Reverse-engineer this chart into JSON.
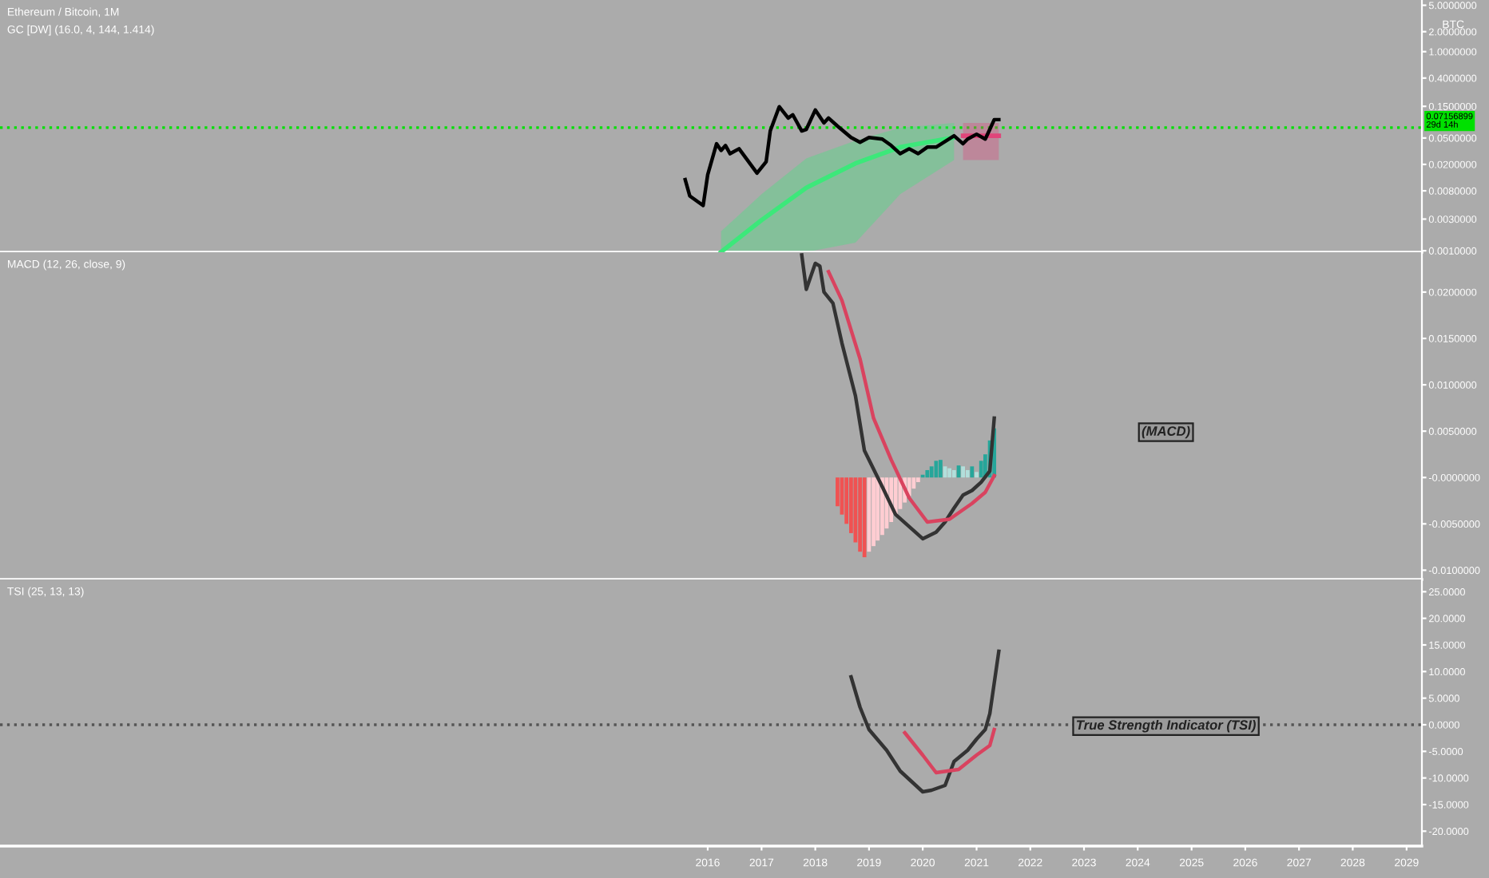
{
  "chart_data": [
    {
      "type": "line",
      "title": "Ethereum / Bitcoin, 1M",
      "subtitle": "GC [DW] (16.0, 4, 144, 1.414)",
      "ylabel": "BTC",
      "log": true,
      "grid": false,
      "tick_labels": "y",
      "xlim": [
        "2002-11",
        "2029-04-15"
      ],
      "ylim": [
        0.00095,
        6
      ],
      "yticks": [
        {
          "value": 5,
          "label": "5.0000000"
        },
        {
          "value": 2,
          "label": "2.0000000"
        },
        {
          "value": 1,
          "label": "1.0000000"
        },
        {
          "value": 0.4,
          "label": "0.4000000"
        },
        {
          "value": 0.15,
          "label": "0.1500000"
        },
        {
          "value": 0.05,
          "label": "0.0500000"
        },
        {
          "value": 0.02,
          "label": "0.0200000"
        },
        {
          "value": 0.008,
          "label": "0.0080000"
        },
        {
          "value": 0.003,
          "label": "0.0030000"
        },
        {
          "value": 0.001,
          "label": "0.0010000"
        }
      ],
      "ref_lines": [
        {
          "axis": "y",
          "value": 0.07156899,
          "label": "0.07156899\n29d 14h",
          "color": "#00e000",
          "line_style": "dotted"
        }
      ],
      "series": [
        {
          "type": "line",
          "color": "#3ce87a",
          "x": [
            "2016-04",
            "2017-01",
            "2017-11",
            "2018-10",
            "2019-08",
            "2020-08"
          ],
          "values": [
            0.00096,
            0.0029,
            0.0089,
            0.0207,
            0.0364,
            0.0509
          ],
          "lower": [
            0.00096,
            0.00096,
            0.00096,
            0.00132,
            0.0071,
            0.0232
          ],
          "upper": [
            0.00196,
            0.0071,
            0.0246,
            0.0456,
            0.0714,
            0.0845
          ]
        },
        {
          "type": "line",
          "color": "#e0457a",
          "x": [
            "2020-10",
            "2021-06"
          ],
          "values": [
            0.054,
            0.054
          ],
          "lower": [
            0.0232,
            0.0232
          ],
          "upper": [
            0.0845,
            0.0845
          ]
        },
        {
          "type": "line",
          "color": "#000000",
          "x": [
            "2015-08",
            "2015-09",
            "2015-12",
            "2016-01",
            "2016-03",
            "2016-04",
            "2016-05",
            "2016-06",
            "2016-08",
            "2016-12",
            "2017-02",
            "2017-03",
            "2017-05",
            "2017-07",
            "2017-08",
            "2017-10",
            "2017-11",
            "2018-01",
            "2018-03",
            "2018-04",
            "2018-06",
            "2018-09",
            "2018-11",
            "2019-01",
            "2019-04",
            "2019-06",
            "2019-08",
            "2019-10",
            "2019-12",
            "2020-02",
            "2020-04",
            "2020-08",
            "2020-10",
            "2020-11",
            "2021-01",
            "2021-03",
            "2021-04",
            "2021-05",
            "2021-06"
          ],
          "values": [
            0.0118,
            0.0067,
            0.0048,
            0.014,
            0.041,
            0.0325,
            0.0385,
            0.029,
            0.0344,
            0.0148,
            0.0219,
            0.0638,
            0.148,
            0.1,
            0.112,
            0.0638,
            0.0675,
            0.132,
            0.0845,
            0.1,
            0.0755,
            0.0509,
            0.043,
            0.0509,
            0.0482,
            0.0385,
            0.029,
            0.0344,
            0.029,
            0.0364,
            0.0364,
            0.054,
            0.041,
            0.0482,
            0.057,
            0.0482,
            0.0675,
            0.0946,
            0.0946
          ]
        }
      ]
    },
    {
      "type": "line",
      "title": "MACD (12, 26, close, 9)",
      "annotations": [
        "(MACD)"
      ],
      "grid": false,
      "tick_labels": "y",
      "xlim": [
        "2002-11",
        "2029-04-15"
      ],
      "ylim": [
        -0.011,
        0.0243
      ],
      "yticks": [
        {
          "value": 0.02,
          "label": "0.0200000"
        },
        {
          "value": 0.015,
          "label": "0.0150000"
        },
        {
          "value": 0.01,
          "label": "0.0100000"
        },
        {
          "value": 0.005,
          "label": "0.0050000"
        },
        {
          "value": 0,
          "label": "-0.0000000"
        },
        {
          "value": -0.005,
          "label": "-0.0050000"
        },
        {
          "value": -0.01,
          "label": "-0.0100000"
        }
      ],
      "series": [
        {
          "type": "bar",
          "x": [
            "2018-06",
            "2018-07",
            "2018-08",
            "2018-09",
            "2018-10",
            "2018-11",
            "2018-12",
            "2019-01",
            "2019-02",
            "2019-03",
            "2019-04",
            "2019-05",
            "2019-06",
            "2019-07",
            "2019-08",
            "2019-09",
            "2019-10",
            "2019-11",
            "2019-12",
            "2020-01",
            "2020-02",
            "2020-03",
            "2020-04",
            "2020-05",
            "2020-06",
            "2020-07",
            "2020-08",
            "2020-09",
            "2020-10",
            "2020-11",
            "2020-12",
            "2021-01",
            "2021-02",
            "2021-03",
            "2021-04",
            "2021-05"
          ],
          "values": [
            -0.0031,
            -0.004,
            -0.005,
            -0.006,
            -0.007,
            -0.008,
            -0.0086,
            -0.008,
            -0.0074,
            -0.0068,
            -0.0062,
            -0.0055,
            -0.0048,
            -0.0041,
            -0.0034,
            -0.0027,
            -0.002,
            -0.0012,
            -0.0005,
            0.0003,
            0.0008,
            0.0012,
            0.0018,
            0.0019,
            0.0012,
            0.001,
            0.0008,
            0.0013,
            0.0012,
            0.0008,
            0.0012,
            0.0006,
            0.0018,
            0.0025,
            0.004,
            0.0053
          ],
          "colors": [
            "#f05252",
            "#f05252",
            "#f05252",
            "#f05252",
            "#f05252",
            "#f05252",
            "#f05252",
            "#ffcdd2",
            "#ffcdd2",
            "#ffcdd2",
            "#ffcdd2",
            "#ffcdd2",
            "#ffcdd2",
            "#ffcdd2",
            "#ffcdd2",
            "#ffcdd2",
            "#ffcdd2",
            "#ffcdd2",
            "#ffcdd2",
            "#26a69a",
            "#26a69a",
            "#26a69a",
            "#26a69a",
            "#26a69a",
            "#b2dfdb",
            "#b2dfdb",
            "#b2dfdb",
            "#26a69a",
            "#b2dfdb",
            "#b2dfdb",
            "#26a69a",
            "#b2dfdb",
            "#26a69a",
            "#26a69a",
            "#26a69a",
            "#26a69a"
          ]
        },
        {
          "type": "line",
          "color": "#333333",
          "x": [
            "2017-10",
            "2017-11",
            "2018-01",
            "2018-02",
            "2018-03",
            "2018-05",
            "2018-07",
            "2018-10",
            "2018-12",
            "2019-04",
            "2019-07",
            "2020-01",
            "2020-04",
            "2020-06",
            "2020-08",
            "2020-10",
            "2020-12",
            "2021-02",
            "2021-04",
            "2021-05"
          ],
          "values": [
            0.024,
            0.0203,
            0.0231,
            0.0228,
            0.02,
            0.0188,
            0.0145,
            0.0088,
            0.0029,
            -0.001,
            -0.004,
            -0.0066,
            -0.0059,
            -0.0048,
            -0.0033,
            -0.0019,
            -0.0014,
            -0.0005,
            0.0007,
            0.0064
          ]
        },
        {
          "type": "line",
          "color": "#d9435f",
          "x": [
            "2018-04",
            "2018-07",
            "2018-11",
            "2019-02",
            "2019-06",
            "2019-10",
            "2020-02",
            "2020-07",
            "2020-12",
            "2021-03",
            "2021-05"
          ],
          "values": [
            0.0222,
            0.0191,
            0.0128,
            0.0064,
            0.0019,
            -0.0022,
            -0.0048,
            -0.0045,
            -0.0028,
            -0.0016,
            0.0002
          ]
        }
      ]
    },
    {
      "type": "line",
      "title": "TSI (25, 13, 13)",
      "annotations": [
        "True Strength Indicator (TSI)"
      ],
      "grid": false,
      "xlim": [
        "2002-11",
        "2029-04-15"
      ],
      "ylim": [
        -22.8,
        27.3
      ],
      "xticks": [
        "2016",
        "2017",
        "2018",
        "2019",
        "2020",
        "2021",
        "2022",
        "2023",
        "2024",
        "2025",
        "2026",
        "2027",
        "2028",
        "2029"
      ],
      "yticks": [
        {
          "value": 25,
          "label": "25.0000"
        },
        {
          "value": 20,
          "label": "20.0000"
        },
        {
          "value": 15,
          "label": "15.0000"
        },
        {
          "value": 10,
          "label": "10.0000"
        },
        {
          "value": 5,
          "label": "5.0000"
        },
        {
          "value": 0,
          "label": "0.0000"
        },
        {
          "value": -5,
          "label": "-5.0000"
        },
        {
          "value": -10,
          "label": "-10.0000"
        },
        {
          "value": -15,
          "label": "-15.0000"
        },
        {
          "value": -20,
          "label": "-20.0000"
        }
      ],
      "ref_lines": [
        {
          "axis": "y",
          "value": 0,
          "label": null,
          "color": "#555555",
          "line_style": "dotted"
        }
      ],
      "series": [
        {
          "type": "line",
          "color": "#333333",
          "x": [
            "2018-09",
            "2018-11",
            "2019-01",
            "2019-05",
            "2019-08",
            "2020-01",
            "2020-03",
            "2020-06",
            "2020-08",
            "2020-11",
            "2021-01",
            "2021-03",
            "2021-04",
            "2021-06"
          ],
          "values": [
            9.0,
            3.3,
            -0.9,
            -4.8,
            -8.7,
            -12.6,
            -12.3,
            -11.4,
            -6.9,
            -4.8,
            -2.7,
            -0.9,
            2.1,
            13.8
          ]
        },
        {
          "type": "line",
          "color": "#d9435f",
          "x": [
            "2019-09",
            "2020-01",
            "2020-04",
            "2020-09",
            "2021-01",
            "2021-04",
            "2021-05"
          ],
          "values": [
            -1.5,
            -5.7,
            -9.0,
            -8.4,
            -5.7,
            -3.9,
            -0.9
          ]
        }
      ]
    }
  ]
}
